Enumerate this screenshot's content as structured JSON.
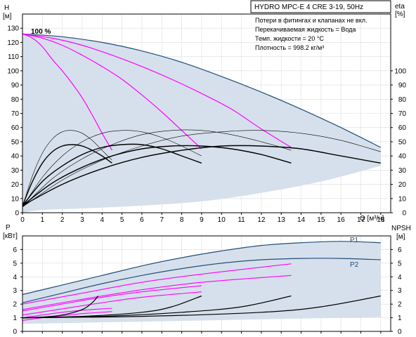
{
  "chart_data": [
    {
      "type": "line",
      "title": "HYDRO MPC-E 4 CRE 3-19, 50Hz",
      "info_lines": [
        "Потери в фитингах и клапанах не вкл.",
        "Перекачиваемая жидкость = Вода",
        "Темп. жидкости = 20 °C",
        "Плотность = 998.2 кг/м³"
      ],
      "ylabel": "H",
      "ylabel_unit": "[м]",
      "y2label": "eta",
      "y2label_unit": "[%]",
      "xlabel": "Q [м³/ч]",
      "speed_label": "100 %",
      "xlim": [
        0,
        18.5
      ],
      "ylim": [
        0,
        140
      ],
      "y2lim": [
        0,
        140
      ],
      "x_ticks": [
        0,
        1,
        2,
        3,
        4,
        5,
        6,
        7,
        8,
        9,
        10,
        11,
        12,
        13,
        14,
        15,
        16,
        17,
        18
      ],
      "y_ticks": [
        0,
        10,
        20,
        30,
        40,
        50,
        60,
        70,
        80,
        90,
        100,
        110,
        120,
        130
      ],
      "y2_ticks": [
        0,
        10,
        20,
        30,
        40,
        50,
        60,
        70,
        80,
        90,
        100
      ],
      "grid": true,
      "colors": {
        "envelope_fill": "#d6e0ec",
        "envelope_edge": "#1f4e79",
        "pump_curves": "#ff00ff",
        "efficiency": "#000000",
        "grid": "#bbbbbb"
      },
      "series": [
        {
          "role": "envelope-top",
          "x": [
            0,
            2,
            4,
            6,
            8,
            10,
            12,
            14,
            16,
            18
          ],
          "values": [
            126,
            124,
            120,
            114,
            106,
            96,
            85,
            73,
            60,
            46
          ]
        },
        {
          "role": "envelope-bottom",
          "x": [
            0,
            1,
            3,
            6,
            9,
            12,
            15,
            18
          ],
          "values": [
            0,
            2,
            3,
            5,
            8,
            14,
            22,
            33
          ]
        },
        {
          "role": "pump-1",
          "x": [
            0,
            0.5,
            1,
            1.5,
            2,
            2.5,
            3,
            3.5,
            4,
            4.5
          ],
          "values": [
            126,
            123,
            117,
            108,
            100,
            91,
            81,
            69,
            56,
            44
          ]
        },
        {
          "role": "pump-2",
          "x": [
            0,
            1,
            2,
            3,
            4,
            5,
            6,
            7,
            8,
            9
          ],
          "values": [
            126,
            123,
            118,
            111,
            103,
            94,
            83,
            71,
            58,
            45
          ]
        },
        {
          "role": "pump-3",
          "x": [
            0,
            1.5,
            3,
            4.5,
            6,
            7.5,
            9,
            10.5,
            12,
            13.5
          ],
          "values": [
            126,
            123,
            118,
            111,
            103,
            94,
            84,
            73,
            59,
            46
          ]
        },
        {
          "role": "eta-1",
          "x": [
            0,
            0.5,
            1,
            1.5,
            2,
            2.5,
            3,
            3.5,
            4,
            4.5
          ],
          "values": [
            5,
            22,
            35,
            43,
            47,
            48,
            47,
            44,
            40,
            35
          ]
        },
        {
          "role": "eta-2",
          "x": [
            0,
            1,
            2,
            3,
            4,
            5,
            6,
            7,
            8,
            9
          ],
          "values": [
            5,
            22,
            33,
            41,
            46,
            48,
            48,
            45,
            40,
            35
          ]
        },
        {
          "role": "eta-3",
          "x": [
            0,
            1.5,
            3,
            4.5,
            6,
            7.5,
            9,
            10.5,
            12,
            13.5
          ],
          "values": [
            5,
            21,
            32,
            40,
            45,
            47,
            47,
            45,
            41,
            35
          ]
        },
        {
          "role": "eta-4",
          "x": [
            0,
            2,
            4,
            6,
            8,
            10,
            12,
            14,
            16,
            18
          ],
          "values": [
            5,
            20,
            31,
            39,
            44,
            47,
            47,
            45,
            40,
            35
          ]
        },
        {
          "role": "eta-thin-1",
          "x": [
            0,
            0.5,
            1,
            1.5,
            2,
            2.5,
            3,
            3.5,
            4,
            4.5
          ],
          "values": [
            4,
            26,
            42,
            52,
            57,
            58,
            56,
            51,
            44,
            37
          ]
        },
        {
          "role": "eta-thin-2",
          "x": [
            0,
            1,
            2,
            3,
            4,
            5,
            6,
            7,
            8,
            9
          ],
          "values": [
            4,
            25,
            40,
            50,
            56,
            58,
            57,
            53,
            47,
            40
          ]
        },
        {
          "role": "eta-thin-3",
          "x": [
            0,
            1.5,
            3,
            4.5,
            6,
            7.5,
            9,
            10.5,
            12,
            13.5
          ],
          "values": [
            4,
            24,
            38,
            48,
            55,
            58,
            58,
            55,
            50,
            44
          ]
        },
        {
          "role": "eta-thin-4",
          "x": [
            0,
            2,
            4,
            6,
            8,
            10,
            12,
            14,
            16,
            18
          ],
          "values": [
            4,
            23,
            37,
            47,
            54,
            57,
            58,
            56,
            51,
            43
          ]
        }
      ]
    },
    {
      "type": "line",
      "ylabel": "P",
      "ylabel_unit": "[кВт]",
      "y2label": "NPSH",
      "y2label_unit": "[м]",
      "xlim": [
        0,
        18.5
      ],
      "ylim": [
        0,
        7
      ],
      "y2lim": [
        0,
        7
      ],
      "y_ticks": [
        0,
        1,
        2,
        3,
        4,
        5,
        6
      ],
      "y2_ticks": [
        0,
        1,
        2,
        3,
        4,
        5,
        6
      ],
      "grid": true,
      "curve_labels": [
        "P1",
        "P2"
      ],
      "series": [
        {
          "name": "P1",
          "role": "power-envelope-top",
          "x": [
            0,
            2,
            4,
            6,
            8,
            10,
            12,
            14,
            16,
            18
          ],
          "values": [
            2.7,
            3.4,
            4.1,
            4.8,
            5.4,
            5.9,
            6.3,
            6.5,
            6.6,
            6.5
          ]
        },
        {
          "name": "P2",
          "role": "power-envelope-mid",
          "x": [
            0,
            2,
            4,
            6,
            8,
            10,
            12,
            14,
            16,
            18
          ],
          "values": [
            2.1,
            2.8,
            3.5,
            4.1,
            4.6,
            5.0,
            5.25,
            5.35,
            5.35,
            5.25
          ]
        },
        {
          "role": "power-envelope-bottom",
          "x": [
            0,
            18
          ],
          "values": [
            0.55,
            1.05
          ]
        },
        {
          "role": "p1-1",
          "x": [
            0,
            1,
            2,
            3,
            4.5
          ],
          "values": [
            1.0,
            1.2,
            1.4,
            1.55,
            1.7
          ]
        },
        {
          "role": "p1-2",
          "x": [
            0,
            2,
            4,
            6,
            9
          ],
          "values": [
            1.5,
            2.0,
            2.5,
            2.9,
            3.35
          ]
        },
        {
          "role": "p1-3",
          "x": [
            0,
            3,
            6,
            9,
            13.5
          ],
          "values": [
            2.0,
            2.8,
            3.6,
            4.2,
            4.95
          ]
        },
        {
          "role": "p2-1",
          "x": [
            0,
            1,
            2,
            3,
            4.5
          ],
          "values": [
            0.8,
            1.0,
            1.15,
            1.3,
            1.45
          ]
        },
        {
          "role": "p2-2",
          "x": [
            0,
            2,
            4,
            6,
            9
          ],
          "values": [
            1.2,
            1.65,
            2.1,
            2.5,
            2.9
          ]
        },
        {
          "role": "p2-3",
          "x": [
            0,
            3,
            6,
            9,
            13.5
          ],
          "values": [
            1.6,
            2.35,
            3.05,
            3.6,
            4.1
          ]
        },
        {
          "role": "npsh-1",
          "x": [
            0,
            1,
            2,
            3,
            3.5,
            3.8
          ],
          "values": [
            1.0,
            1.05,
            1.2,
            1.6,
            2.1,
            2.6
          ]
        },
        {
          "role": "npsh-2",
          "x": [
            0,
            3,
            6,
            7.5,
            9
          ],
          "values": [
            1.0,
            1.1,
            1.4,
            1.8,
            2.6
          ]
        },
        {
          "role": "npsh-3",
          "x": [
            0,
            4,
            8,
            11,
            13.5
          ],
          "values": [
            1.0,
            1.1,
            1.4,
            1.8,
            2.6
          ]
        },
        {
          "role": "npsh-4",
          "x": [
            0,
            6,
            12,
            15,
            18
          ],
          "values": [
            1.0,
            1.1,
            1.4,
            1.8,
            2.6
          ]
        }
      ]
    }
  ]
}
